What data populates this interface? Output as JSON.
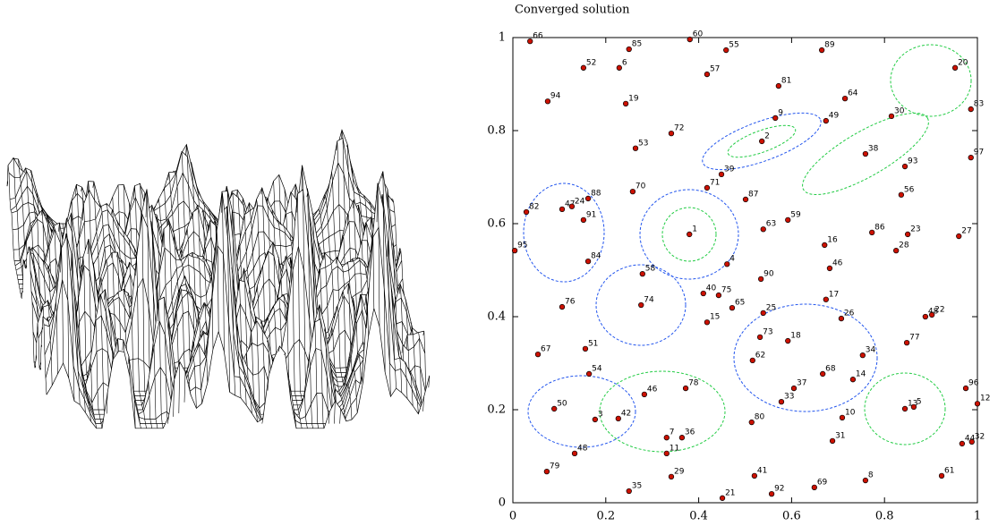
{
  "chart_data": {
    "type": "scatter",
    "title": "Converged solution",
    "point_labels": [
      "66",
      "60",
      "85",
      "55",
      "89",
      "52",
      "6",
      "20",
      "57",
      "81",
      "94",
      "64",
      "19",
      "83",
      "30",
      "9",
      "49",
      "72",
      "2",
      "53",
      "38",
      "97",
      "93",
      "39",
      "71",
      "70",
      "56",
      "88",
      "87",
      "47",
      "24",
      "82",
      "91",
      "59",
      "63",
      "1",
      "86",
      "23",
      "27",
      "16",
      "28",
      "95",
      "84",
      "4",
      "46",
      "58",
      "90",
      "40",
      "75",
      "17",
      "74",
      "76",
      "65",
      "25",
      "48",
      "22",
      "15",
      "26",
      "73",
      "18",
      "77",
      "51",
      "34",
      "67",
      "62",
      "54",
      "68",
      "14",
      "37",
      "78",
      "96",
      "46",
      "33",
      "12",
      "50",
      "13",
      "5",
      "10",
      "3",
      "42",
      "80",
      "7",
      "36",
      "31",
      "44",
      "32",
      "11",
      "48",
      "79",
      "41",
      "61",
      "29",
      "8",
      "35",
      "69",
      "92",
      "21"
    ],
    "x": [
      0.037,
      0.381,
      0.25,
      0.459,
      0.665,
      0.152,
      0.229,
      0.952,
      0.418,
      0.572,
      0.075,
      0.715,
      0.243,
      0.986,
      0.815,
      0.565,
      0.674,
      0.341,
      0.536,
      0.264,
      0.759,
      0.986,
      0.844,
      0.449,
      0.418,
      0.258,
      0.836,
      0.162,
      0.501,
      0.106,
      0.127,
      0.029,
      0.152,
      0.592,
      0.539,
      0.38,
      0.773,
      0.85,
      0.96,
      0.671,
      0.825,
      0.004,
      0.162,
      0.461,
      0.682,
      0.279,
      0.534,
      0.41,
      0.443,
      0.674,
      0.276,
      0.106,
      0.472,
      0.539,
      0.888,
      0.902,
      0.418,
      0.707,
      0.532,
      0.592,
      0.848,
      0.156,
      0.753,
      0.054,
      0.516,
      0.164,
      0.667,
      0.732,
      0.605,
      0.372,
      0.975,
      0.283,
      0.578,
      1.0,
      0.089,
      0.844,
      0.863,
      0.709,
      0.177,
      0.227,
      0.514,
      0.331,
      0.364,
      0.688,
      0.967,
      0.988,
      0.331,
      0.133,
      0.073,
      0.52,
      0.923,
      0.341,
      0.759,
      0.25,
      0.649,
      0.557,
      0.451
    ],
    "values": [
      0.992,
      0.996,
      0.975,
      0.973,
      0.973,
      0.935,
      0.935,
      0.935,
      0.921,
      0.896,
      0.863,
      0.869,
      0.858,
      0.846,
      0.831,
      0.827,
      0.821,
      0.794,
      0.777,
      0.762,
      0.75,
      0.742,
      0.723,
      0.706,
      0.677,
      0.669,
      0.662,
      0.654,
      0.652,
      0.631,
      0.637,
      0.625,
      0.608,
      0.608,
      0.588,
      0.577,
      0.581,
      0.577,
      0.573,
      0.554,
      0.542,
      0.542,
      0.519,
      0.513,
      0.504,
      0.492,
      0.481,
      0.45,
      0.446,
      0.437,
      0.425,
      0.421,
      0.419,
      0.408,
      0.4,
      0.404,
      0.388,
      0.396,
      0.356,
      0.348,
      0.344,
      0.331,
      0.317,
      0.319,
      0.306,
      0.277,
      0.277,
      0.265,
      0.246,
      0.246,
      0.246,
      0.233,
      0.217,
      0.213,
      0.202,
      0.202,
      0.206,
      0.183,
      0.179,
      0.181,
      0.173,
      0.14,
      0.14,
      0.133,
      0.127,
      0.131,
      0.106,
      0.106,
      0.067,
      0.058,
      0.058,
      0.056,
      0.048,
      0.025,
      0.033,
      0.019,
      0.01
    ],
    "color": "#cc1100",
    "xlim": [
      0,
      1
    ],
    "ylim": [
      0,
      1
    ],
    "xticks": [
      0,
      0.2,
      0.4,
      0.6,
      0.8,
      1
    ],
    "yticks": [
      0,
      0.2,
      0.4,
      0.6,
      0.8,
      1
    ]
  }
}
